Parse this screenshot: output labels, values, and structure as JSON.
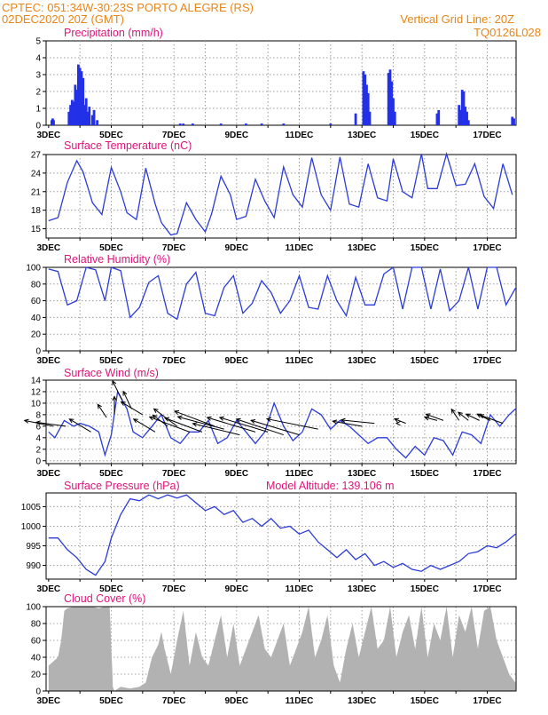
{
  "header": {
    "line1_left": "CPTEC:   051:34W-30:23S  PORTO ALEGRE (RS)",
    "line2_left": "02DEC2020 20Z (GMT)",
    "line2_right": "Vertical Grid Line: 20Z",
    "line3_right": "TQ0126L028"
  },
  "x_tick_labels": [
    "3DEC",
    "5DEC",
    "7DEC",
    "9DEC",
    "11DEC",
    "13DEC",
    "15DEC",
    "17DEC"
  ],
  "colors": {
    "line": "#2b3bd8",
    "bar": "#2330e8",
    "cloud": "#a8a8a8",
    "title": "#e0147a",
    "header": "#e8861a"
  },
  "chart_data": [
    {
      "id": "precip",
      "type": "bar",
      "title": "Precipitation (mm/h)",
      "x_unit": "days since 02DEC2020 20Z",
      "xlim": [
        -0.08,
        14.92
      ],
      "ylim": [
        0,
        5
      ],
      "yticks": [
        0,
        1,
        2,
        3,
        4,
        5
      ],
      "grid": true,
      "x": [
        0.1,
        0.13,
        0.16,
        0.65,
        0.7,
        0.75,
        0.8,
        0.85,
        0.9,
        0.95,
        1.0,
        1.05,
        1.1,
        1.15,
        1.2,
        1.25,
        1.3,
        1.4,
        1.45,
        1.55,
        4.2,
        4.3,
        4.6,
        5.5,
        6.3,
        6.8,
        7.5,
        9.0,
        9.8,
        10.05,
        10.1,
        10.15,
        10.2,
        10.25,
        10.85,
        10.9,
        10.95,
        11.0,
        11.05,
        12.4,
        12.45,
        13.1,
        13.15,
        13.2,
        13.25,
        13.3,
        13.35,
        13.4,
        14.8,
        14.85
      ],
      "values": [
        0.3,
        0.4,
        0.3,
        0.8,
        1.2,
        1.5,
        1.4,
        2.4,
        2.1,
        3.6,
        3.4,
        3.2,
        2.8,
        1.2,
        1.6,
        0.8,
        1.1,
        0.6,
        0.9,
        0.3,
        0.1,
        0.1,
        0.1,
        0.1,
        0.1,
        0.1,
        0.1,
        0.1,
        0.7,
        3.2,
        3.0,
        2.4,
        1.9,
        0.8,
        3.1,
        3.3,
        2.6,
        1.6,
        0.8,
        0.7,
        0.9,
        1.2,
        0.9,
        2.1,
        2.0,
        1.1,
        0.8,
        0.3,
        0.5,
        0.4
      ]
    },
    {
      "id": "temp",
      "type": "line",
      "title": "Surface Temperature (nC)",
      "xlim": [
        -0.08,
        14.92
      ],
      "ylim": [
        13.5,
        27
      ],
      "yticks": [
        15,
        18,
        21,
        24,
        27
      ],
      "grid": true,
      "x": [
        0,
        0.3,
        0.6,
        0.9,
        1.1,
        1.4,
        1.7,
        2.0,
        2.3,
        2.5,
        2.8,
        3.1,
        3.4,
        3.6,
        3.9,
        4.1,
        4.4,
        4.7,
        5.0,
        5.2,
        5.5,
        5.8,
        6.0,
        6.3,
        6.6,
        6.9,
        7.2,
        7.5,
        7.8,
        8.1,
        8.4,
        8.7,
        9.0,
        9.3,
        9.6,
        9.9,
        10.2,
        10.5,
        10.8,
        11.0,
        11.3,
        11.6,
        11.9,
        12.1,
        12.4,
        12.7,
        13.0,
        13.3,
        13.6,
        13.9,
        14.2,
        14.5,
        14.8
      ],
      "values": [
        16.3,
        16.8,
        22.5,
        26.0,
        24.2,
        19.2,
        17.3,
        24.9,
        21.0,
        17.6,
        16.5,
        24.8,
        19.0,
        16.0,
        14.0,
        14.2,
        19.2,
        16.5,
        14.5,
        17.4,
        23.5,
        20.5,
        16.5,
        17.0,
        23.0,
        19.5,
        16.8,
        25.0,
        20.5,
        18.5,
        26.5,
        20.5,
        18.0,
        26.6,
        19.0,
        18.5,
        25.5,
        20.0,
        19.5,
        26.3,
        21.0,
        20.0,
        27.1,
        21.5,
        21.5,
        27.1,
        22.0,
        22.2,
        25.5,
        20.2,
        18.3,
        25.5,
        20.5
      ]
    },
    {
      "id": "rh",
      "type": "line",
      "title": "Relative Humidity (%)",
      "xlim": [
        -0.08,
        14.92
      ],
      "ylim": [
        0,
        100
      ],
      "yticks": [
        0,
        20,
        40,
        60,
        80,
        100
      ],
      "grid": true,
      "x": [
        0,
        0.3,
        0.6,
        0.9,
        1.2,
        1.5,
        1.8,
        2.0,
        2.3,
        2.6,
        2.9,
        3.2,
        3.5,
        3.8,
        4.1,
        4.4,
        4.7,
        5.0,
        5.3,
        5.6,
        5.9,
        6.2,
        6.5,
        6.8,
        7.1,
        7.4,
        7.7,
        8.0,
        8.3,
        8.6,
        8.9,
        9.2,
        9.5,
        9.8,
        10.1,
        10.4,
        10.7,
        11.0,
        11.3,
        11.6,
        11.9,
        12.2,
        12.5,
        12.8,
        13.1,
        13.4,
        13.7,
        14.0,
        14.3,
        14.6,
        14.9
      ],
      "values": [
        98,
        95,
        55,
        60,
        100,
        97,
        60,
        100,
        96,
        40,
        52,
        82,
        90,
        45,
        38,
        80,
        94,
        45,
        42,
        76,
        90,
        45,
        57,
        84,
        70,
        45,
        60,
        90,
        52,
        50,
        90,
        60,
        42,
        88,
        55,
        55,
        92,
        100,
        50,
        100,
        100,
        50,
        98,
        48,
        60,
        100,
        50,
        100,
        100,
        55,
        75
      ]
    },
    {
      "id": "wind",
      "type": "line",
      "title": "Surface Wind (m/s)",
      "xlim": [
        -0.08,
        14.92
      ],
      "ylim": [
        -0.5,
        14
      ],
      "yticks": [
        0,
        2,
        4,
        6,
        8,
        10,
        12,
        14
      ],
      "grid": true,
      "x": [
        0,
        0.2,
        0.5,
        0.8,
        1.0,
        1.3,
        1.6,
        1.8,
        2.0,
        2.2,
        2.5,
        2.7,
        3.0,
        3.3,
        3.6,
        3.9,
        4.2,
        4.5,
        4.8,
        5.1,
        5.4,
        5.7,
        6.0,
        6.3,
        6.6,
        6.9,
        7.2,
        7.5,
        7.8,
        8.1,
        8.4,
        8.7,
        9.0,
        9.3,
        9.6,
        9.9,
        10.2,
        10.5,
        10.8,
        11.1,
        11.4,
        11.7,
        12.0,
        12.3,
        12.6,
        12.9,
        13.2,
        13.5,
        13.8,
        14.1,
        14.4,
        14.7,
        14.9
      ],
      "values": [
        5.0,
        4.0,
        7.0,
        6.0,
        6.5,
        6.0,
        5.0,
        1.0,
        4.5,
        12.0,
        9.0,
        5.0,
        4.0,
        6.0,
        8.0,
        4.0,
        3.0,
        5.0,
        5.0,
        7.0,
        3.0,
        4.0,
        7.0,
        5.0,
        3.0,
        5.0,
        10.0,
        6.0,
        3.5,
        5.0,
        9.0,
        8.0,
        5.5,
        7.0,
        6.0,
        4.5,
        3.0,
        4.0,
        4.0,
        2.0,
        0.5,
        2.5,
        1.0,
        4.0,
        3.5,
        1.0,
        5.0,
        4.5,
        3.0,
        8.0,
        6.0,
        8.0,
        9.0
      ],
      "arrow_origin_x": [
        0.15,
        0.55,
        1.35,
        1.85,
        2.1,
        2.35,
        2.65,
        3.0,
        3.4,
        3.8,
        4.1,
        4.5,
        4.9,
        5.3,
        5.6,
        6.1,
        6.6,
        7.0,
        7.5,
        8.0,
        8.6,
        10.0,
        10.4,
        11.1,
        11.4,
        12.4,
        12.6,
        13.1,
        13.4,
        13.75,
        14.1,
        14.5
      ],
      "arrow_origin_y": [
        6,
        6,
        5,
        7.5,
        8,
        10.5,
        9,
        8,
        5,
        6,
        6,
        5,
        5,
        6,
        5.5,
        4.5,
        5,
        5,
        4.5,
        4.5,
        5.5,
        6,
        6.5,
        6.5,
        6.5,
        7,
        7,
        7,
        7,
        7,
        7,
        6.5
      ],
      "arrow_u": [
        0.6,
        0.9,
        0.5,
        0.2,
        0.0,
        0.3,
        0.2,
        0.6,
        0.5,
        0.4,
        0.4,
        0.8,
        0.8,
        0.8,
        0.9,
        1.0,
        1.0,
        1.0,
        0.9,
        1.0,
        0.9,
        0.7,
        0.6,
        0.0,
        0.3,
        0.7,
        0.5,
        0.2,
        0.3,
        0.5,
        0.5,
        0.5
      ],
      "arrow_v": [
        0.2,
        0.2,
        0.5,
        0.5,
        1.0,
        1.0,
        0.7,
        0.6,
        0.5,
        0.5,
        0.5,
        0.5,
        0.5,
        0.5,
        0.4,
        0.4,
        0.5,
        0.5,
        0.5,
        0.5,
        0.3,
        0.2,
        0.1,
        0.0,
        0.2,
        0.3,
        0.3,
        0.5,
        0.4,
        0.4,
        0.4,
        0.3
      ],
      "arrow_length": [
        0.9,
        0.9,
        0.9,
        0.7,
        0.9,
        1.0,
        0.9,
        0.9,
        0.9,
        0.7,
        1.1,
        1.4,
        1.3,
        1.4,
        1.5,
        1.5,
        1.6,
        1.6,
        1.6,
        1.6,
        1.6,
        0.9,
        1.0,
        0.5,
        0.4,
        0.4,
        0.6,
        0.6,
        0.5,
        0.5,
        0.5,
        0.8
      ]
    },
    {
      "id": "pressure",
      "type": "line",
      "title": "Surface Pressure (hPa)",
      "annotation": "Model Altitude: 139.106 m",
      "xlim": [
        -0.08,
        14.92
      ],
      "ylim": [
        986.5,
        1008.5
      ],
      "yticks": [
        990,
        995,
        1000,
        1005
      ],
      "grid": true,
      "x": [
        0,
        0.3,
        0.6,
        0.9,
        1.2,
        1.5,
        1.8,
        2.0,
        2.3,
        2.6,
        2.9,
        3.2,
        3.5,
        3.8,
        4.1,
        4.4,
        4.7,
        5.0,
        5.3,
        5.6,
        5.9,
        6.2,
        6.5,
        6.8,
        7.1,
        7.4,
        7.7,
        8.0,
        8.3,
        8.6,
        8.9,
        9.2,
        9.5,
        9.8,
        10.1,
        10.4,
        10.7,
        11.0,
        11.3,
        11.6,
        11.9,
        12.2,
        12.5,
        12.8,
        13.1,
        13.4,
        13.7,
        14.0,
        14.3,
        14.6,
        14.9
      ],
      "values": [
        997,
        997,
        994,
        992,
        989,
        987.5,
        991,
        997,
        1003,
        1007,
        1006.5,
        1008,
        1007,
        1008,
        1007.2,
        1008,
        1006,
        1004,
        1005,
        1003,
        1004,
        1001,
        1002,
        1000,
        1002,
        999.5,
        1000,
        998,
        999,
        996,
        994,
        992,
        994,
        991.5,
        993,
        990,
        991,
        989.5,
        990.5,
        989,
        988.5,
        990,
        989,
        990,
        991,
        993,
        993.5,
        995,
        994.5,
        996,
        998
      ]
    },
    {
      "id": "cloud",
      "type": "area",
      "title": "Cloud Cover (%)",
      "xlim": [
        -0.08,
        14.92
      ],
      "ylim": [
        0,
        100
      ],
      "yticks": [
        0,
        20,
        40,
        60,
        80,
        100
      ],
      "grid": true,
      "x": [
        0,
        0.15,
        0.3,
        0.4,
        0.5,
        0.6,
        0.8,
        1.0,
        1.2,
        1.4,
        1.6,
        1.8,
        1.95,
        2.05,
        2.1,
        2.3,
        2.6,
        2.9,
        3.1,
        3.3,
        3.5,
        3.6,
        3.7,
        3.9,
        4.1,
        4.3,
        4.5,
        4.7,
        4.9,
        5.1,
        5.3,
        5.5,
        5.7,
        5.9,
        6.1,
        6.3,
        6.5,
        6.7,
        6.9,
        7.1,
        7.3,
        7.5,
        7.7,
        7.9,
        8.1,
        8.3,
        8.5,
        8.7,
        8.9,
        9.1,
        9.3,
        9.5,
        9.7,
        9.9,
        10.1,
        10.3,
        10.5,
        10.7,
        10.9,
        11.1,
        11.3,
        11.5,
        11.7,
        11.9,
        12.1,
        12.3,
        12.5,
        12.7,
        12.9,
        13.1,
        13.3,
        13.5,
        13.7,
        13.9,
        14.1,
        14.3,
        14.5,
        14.7,
        14.9
      ],
      "values": [
        30,
        35,
        40,
        60,
        95,
        98,
        100,
        100,
        100,
        100,
        98,
        100,
        100,
        5,
        0,
        5,
        3,
        5,
        10,
        40,
        55,
        70,
        50,
        20,
        60,
        95,
        30,
        70,
        40,
        30,
        60,
        90,
        40,
        80,
        30,
        50,
        70,
        90,
        50,
        40,
        60,
        80,
        30,
        50,
        70,
        100,
        40,
        60,
        90,
        30,
        10,
        50,
        80,
        40,
        70,
        100,
        50,
        60,
        100,
        40,
        70,
        90,
        50,
        100,
        40,
        80,
        60,
        100,
        40,
        90,
        70,
        100,
        50,
        95,
        100,
        60,
        40,
        20,
        10
      ]
    }
  ]
}
